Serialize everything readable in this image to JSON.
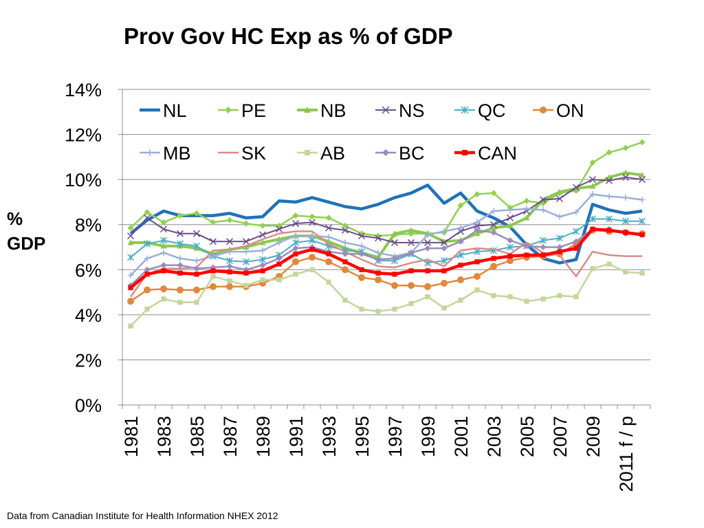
{
  "chart_data": {
    "type": "line",
    "title": "Prov Gov HC Exp as % of GDP",
    "ylabel_lines": [
      "%",
      "GDP"
    ],
    "xlabel": "",
    "ylim": [
      0,
      14
    ],
    "yticks": [
      0,
      2,
      4,
      6,
      8,
      10,
      12,
      14
    ],
    "ytick_labels": [
      "0%",
      "2%",
      "4%",
      "6%",
      "8%",
      "10%",
      "12%",
      "14%"
    ],
    "x": [
      1981,
      1982,
      1983,
      1984,
      1985,
      1986,
      1987,
      1988,
      1989,
      1990,
      1991,
      1992,
      1993,
      1994,
      1995,
      1996,
      1997,
      1998,
      1999,
      2000,
      2001,
      2002,
      2003,
      2004,
      2005,
      2006,
      2007,
      2008,
      2009,
      2010,
      2011,
      2012
    ],
    "x_tick_labels": [
      {
        "label": "1981",
        "index": 0
      },
      {
        "label": "1983",
        "index": 2
      },
      {
        "label": "1985",
        "index": 4
      },
      {
        "label": "1987",
        "index": 6
      },
      {
        "label": "1989",
        "index": 8
      },
      {
        "label": "1991",
        "index": 10
      },
      {
        "label": "1993",
        "index": 12
      },
      {
        "label": "1995",
        "index": 14
      },
      {
        "label": "1997",
        "index": 16
      },
      {
        "label": "1999",
        "index": 18
      },
      {
        "label": "2001",
        "index": 20
      },
      {
        "label": "2003",
        "index": 22
      },
      {
        "label": "2005",
        "index": 24
      },
      {
        "label": "2007",
        "index": 26
      },
      {
        "label": "2009",
        "index": 28
      },
      {
        "label": "2011 f / p",
        "index": 30
      }
    ],
    "grid": true,
    "legend_position": "top",
    "series": [
      {
        "name": "NL",
        "color": "#1f72b8",
        "marker": "none",
        "width": 4.5,
        "values": [
          7.6,
          8.2,
          8.6,
          8.4,
          8.4,
          8.4,
          8.5,
          8.3,
          8.35,
          9.05,
          9.0,
          9.2,
          9.0,
          8.8,
          8.7,
          8.9,
          9.2,
          9.4,
          9.75,
          8.95,
          9.4,
          8.6,
          8.3,
          7.9,
          7.1,
          6.5,
          6.3,
          6.45,
          8.9,
          8.65,
          8.5,
          8.6
        ]
      },
      {
        "name": "PE",
        "color": "#92d050",
        "marker": "diamond",
        "width": 2.5,
        "values": [
          7.85,
          8.55,
          8.1,
          8.4,
          8.5,
          8.1,
          8.2,
          8.05,
          7.95,
          7.95,
          8.4,
          8.35,
          8.3,
          7.95,
          7.6,
          7.5,
          7.55,
          7.6,
          7.6,
          7.65,
          8.85,
          9.35,
          9.4,
          8.75,
          9.05,
          8.95,
          9.4,
          9.5,
          10.75,
          11.2,
          11.4,
          11.65
        ]
      },
      {
        "name": "NB",
        "color": "#8cc850",
        "marker": "triangle",
        "width": 4,
        "values": [
          7.2,
          7.2,
          7.05,
          7.05,
          6.95,
          6.7,
          6.9,
          7.0,
          7.2,
          7.35,
          7.5,
          7.5,
          7.25,
          6.95,
          6.75,
          6.55,
          7.6,
          7.75,
          7.6,
          7.25,
          7.3,
          7.6,
          7.85,
          7.95,
          8.3,
          9.1,
          9.45,
          9.6,
          9.7,
          10.1,
          10.3,
          10.2
        ]
      },
      {
        "name": "NS",
        "color": "#6a4c8a",
        "marker": "x",
        "width": 2,
        "values": [
          7.5,
          8.3,
          7.8,
          7.6,
          7.6,
          7.25,
          7.25,
          7.25,
          7.55,
          7.8,
          8.05,
          8.1,
          7.85,
          7.75,
          7.5,
          7.4,
          7.2,
          7.2,
          7.2,
          7.2,
          7.7,
          7.95,
          8.0,
          8.3,
          8.6,
          9.1,
          9.15,
          9.65,
          10.0,
          9.95,
          10.1,
          10.0
        ]
      },
      {
        "name": "QC",
        "color": "#4aacc6",
        "marker": "star",
        "width": 2,
        "values": [
          6.55,
          7.15,
          7.3,
          7.15,
          7.05,
          6.6,
          6.4,
          6.35,
          6.45,
          6.65,
          7.2,
          7.3,
          7.05,
          6.85,
          6.8,
          6.4,
          6.4,
          6.7,
          6.3,
          6.4,
          6.65,
          6.8,
          6.85,
          7.0,
          7.05,
          7.3,
          7.4,
          7.7,
          8.25,
          8.25,
          8.15,
          8.15
        ]
      },
      {
        "name": "ON",
        "color": "#e0883c",
        "marker": "circle",
        "width": 2.5,
        "values": [
          4.6,
          5.1,
          5.15,
          5.1,
          5.1,
          5.25,
          5.25,
          5.25,
          5.4,
          5.7,
          6.35,
          6.55,
          6.35,
          6.0,
          5.65,
          5.55,
          5.3,
          5.3,
          5.25,
          5.4,
          5.55,
          5.7,
          6.15,
          6.4,
          6.55,
          6.6,
          6.7,
          7.15,
          7.75,
          7.7,
          7.65,
          7.6
        ]
      },
      {
        "name": "MB",
        "color": "#9aaedd",
        "marker": "plus",
        "width": 2.5,
        "values": [
          5.75,
          6.5,
          6.75,
          6.5,
          6.4,
          6.6,
          6.8,
          6.8,
          6.85,
          7.2,
          7.5,
          7.5,
          7.45,
          7.2,
          7.05,
          6.75,
          6.6,
          6.75,
          7.55,
          7.7,
          7.85,
          8.1,
          8.6,
          8.65,
          8.7,
          8.65,
          8.35,
          8.55,
          9.35,
          9.25,
          9.2,
          9.1
        ]
      },
      {
        "name": "SK",
        "color": "#d98c88",
        "marker": "none",
        "width": 2.5,
        "values": [
          4.8,
          5.8,
          6.05,
          6.05,
          6.1,
          6.85,
          6.9,
          7.05,
          7.35,
          7.6,
          7.7,
          7.7,
          7.15,
          6.8,
          6.45,
          6.15,
          6.1,
          6.3,
          6.45,
          6.15,
          6.85,
          6.95,
          6.9,
          6.7,
          7.2,
          6.75,
          6.65,
          5.7,
          6.8,
          6.65,
          6.6,
          6.6
        ]
      },
      {
        "name": "AB",
        "color": "#c3d69b",
        "marker": "square",
        "width": 2.5,
        "values": [
          3.5,
          4.25,
          4.7,
          4.55,
          4.55,
          5.7,
          5.5,
          5.3,
          5.55,
          5.55,
          5.8,
          6.0,
          5.45,
          4.65,
          4.25,
          4.15,
          4.25,
          4.5,
          4.8,
          4.3,
          4.65,
          5.1,
          4.85,
          4.8,
          4.6,
          4.7,
          4.85,
          4.8,
          6.05,
          6.25,
          5.9,
          5.85
        ]
      },
      {
        "name": "BC",
        "color": "#9a8bbd",
        "marker": "diamond",
        "width": 2.5,
        "values": [
          5.3,
          6.0,
          6.2,
          6.2,
          6.05,
          6.1,
          6.15,
          6.0,
          6.2,
          6.5,
          6.95,
          7.0,
          6.8,
          6.7,
          6.7,
          6.45,
          6.5,
          6.75,
          6.95,
          6.95,
          7.25,
          7.75,
          7.65,
          7.3,
          7.05,
          7.0,
          7.0,
          7.25,
          7.8,
          7.8,
          7.6,
          7.55
        ]
      },
      {
        "name": "CAN",
        "color": "#ff0000",
        "marker": "square",
        "width": 4.5,
        "values": [
          5.2,
          5.8,
          5.95,
          5.85,
          5.8,
          5.95,
          5.9,
          5.85,
          5.95,
          6.25,
          6.7,
          6.9,
          6.7,
          6.35,
          6.0,
          5.85,
          5.8,
          5.95,
          5.95,
          5.95,
          6.2,
          6.35,
          6.5,
          6.6,
          6.65,
          6.65,
          6.8,
          6.95,
          7.8,
          7.75,
          7.65,
          7.55
        ]
      }
    ]
  },
  "source_note": "Data from Canadian Institute for Health Information NHEX 2012"
}
